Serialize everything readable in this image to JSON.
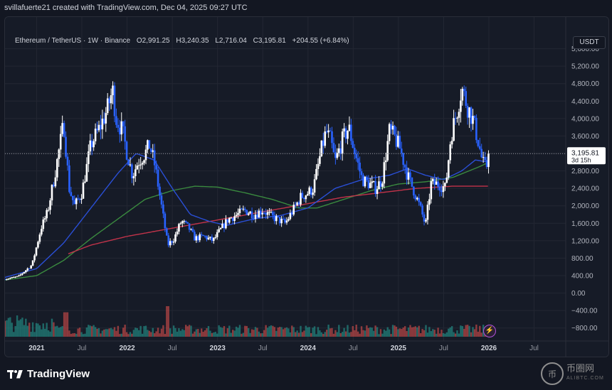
{
  "header": {
    "created_by": "svillafuerte21 created with TradingView.com, Dec 04, 2025 09:27 UTC"
  },
  "legend": {
    "symbol": "Ethereum / TetherUS · 1W · Binance",
    "open": "O2,991.25",
    "high": "H3,240.35",
    "low": "L2,716.04",
    "close": "C3,195.81",
    "change": "+204.55 (+6.84%)"
  },
  "currency": "USDT",
  "price_label": {
    "value": "3,195.81",
    "countdown": "3d 15h"
  },
  "branding": {
    "logo_text": "TradingView",
    "watermark_main": "币圈网",
    "watermark_sub": "ALIBTC.COM",
    "watermark_glyph": "币"
  },
  "colors": {
    "up": "#ffffff",
    "down": "#2962ff",
    "background": "#161b27",
    "grid": "#232733",
    "ma_blue": "#2a4fd6",
    "ma_green": "#3a8a3f",
    "ma_red": "#c2334a",
    "vol_up": "#26a69a",
    "vol_down": "#ef5350"
  },
  "chart_data": {
    "type": "candlestick",
    "ylim": [
      -1000,
      6000
    ],
    "y_ticks": [
      5600,
      5200,
      4800,
      4400,
      4000,
      3600,
      3200,
      2800,
      2400,
      2000,
      1600,
      1200,
      800,
      400,
      0,
      -400,
      -800
    ],
    "y_tick_labels": [
      "5,600.00",
      "5,200.00",
      "4,800.00",
      "4,400.00",
      "4,000.00",
      "3,600.00",
      "3,200.00",
      "2,800.00",
      "2,400.00",
      "2,000.00",
      "1,600.00",
      "1,200.00",
      "800.00",
      "400.00",
      "0.00",
      "−400.00",
      "−800.00"
    ],
    "x_ticks": [
      {
        "label": "2021",
        "t": 0.0
      },
      {
        "label": "Jul",
        "t": 0.5
      },
      {
        "label": "2022",
        "t": 1.0
      },
      {
        "label": "Jul",
        "t": 1.5
      },
      {
        "label": "2023",
        "t": 2.0
      },
      {
        "label": "Jul",
        "t": 2.5
      },
      {
        "label": "2024",
        "t": 3.0
      },
      {
        "label": "Jul",
        "t": 3.5
      },
      {
        "label": "2025",
        "t": 4.0
      },
      {
        "label": "Jul",
        "t": 4.5
      },
      {
        "label": "2026",
        "t": 5.0
      },
      {
        "label": "Jul",
        "t": 5.5
      }
    ],
    "xlim": [
      -0.35,
      5.85
    ],
    "last_price": 3195.81,
    "close_anchors": [
      [
        -0.35,
        320
      ],
      [
        -0.2,
        380
      ],
      [
        -0.05,
        650
      ],
      [
        0.05,
        1500
      ],
      [
        0.12,
        1850
      ],
      [
        0.2,
        2700
      ],
      [
        0.3,
        3900
      ],
      [
        0.36,
        2400
      ],
      [
        0.42,
        2000
      ],
      [
        0.5,
        2300
      ],
      [
        0.6,
        3400
      ],
      [
        0.7,
        3800
      ],
      [
        0.78,
        4200
      ],
      [
        0.84,
        4650
      ],
      [
        0.88,
        4000
      ],
      [
        0.95,
        3700
      ],
      [
        1.0,
        3200
      ],
      [
        1.06,
        2700
      ],
      [
        1.12,
        3000
      ],
      [
        1.2,
        3200
      ],
      [
        1.25,
        3400
      ],
      [
        1.31,
        2900
      ],
      [
        1.38,
        2000
      ],
      [
        1.45,
        1100
      ],
      [
        1.52,
        1250
      ],
      [
        1.6,
        1650
      ],
      [
        1.68,
        1500
      ],
      [
        1.75,
        1250
      ],
      [
        1.85,
        1300
      ],
      [
        1.95,
        1200
      ],
      [
        2.05,
        1500
      ],
      [
        2.12,
        1700
      ],
      [
        2.22,
        1800
      ],
      [
        2.3,
        1900
      ],
      [
        2.4,
        1800
      ],
      [
        2.5,
        1900
      ],
      [
        2.6,
        1750
      ],
      [
        2.7,
        1650
      ],
      [
        2.75,
        1600
      ],
      [
        2.85,
        1950
      ],
      [
        2.92,
        2200
      ],
      [
        3.0,
        2300
      ],
      [
        3.06,
        2400
      ],
      [
        3.15,
        3300
      ],
      [
        3.2,
        3700
      ],
      [
        3.25,
        3500
      ],
      [
        3.3,
        3000
      ],
      [
        3.38,
        3500
      ],
      [
        3.45,
        3800
      ],
      [
        3.52,
        3200
      ],
      [
        3.6,
        2600
      ],
      [
        3.68,
        2500
      ],
      [
        3.75,
        2400
      ],
      [
        3.82,
        2600
      ],
      [
        3.9,
        3700
      ],
      [
        3.95,
        3600
      ],
      [
        4.02,
        3300
      ],
      [
        4.1,
        2700
      ],
      [
        4.18,
        2300
      ],
      [
        4.25,
        1900
      ],
      [
        4.3,
        1550
      ],
      [
        4.36,
        2500
      ],
      [
        4.45,
        2500
      ],
      [
        4.52,
        2400
      ],
      [
        4.58,
        3600
      ],
      [
        4.65,
        4200
      ],
      [
        4.7,
        4700
      ],
      [
        4.76,
        4300
      ],
      [
        4.82,
        4000
      ],
      [
        4.88,
        3500
      ],
      [
        4.93,
        3000
      ],
      [
        4.97,
        2850
      ],
      [
        5.0,
        3195.81
      ]
    ],
    "ma_blue_anchors": [
      [
        -0.35,
        360
      ],
      [
        0.0,
        560
      ],
      [
        0.3,
        1150
      ],
      [
        0.6,
        1950
      ],
      [
        0.9,
        2750
      ],
      [
        1.1,
        3200
      ],
      [
        1.3,
        3050
      ],
      [
        1.5,
        2400
      ],
      [
        1.7,
        1800
      ],
      [
        1.9,
        1650
      ],
      [
        2.1,
        1550
      ],
      [
        2.4,
        1700
      ],
      [
        2.7,
        1780
      ],
      [
        3.0,
        1950
      ],
      [
        3.3,
        2400
      ],
      [
        3.6,
        2600
      ],
      [
        3.9,
        2700
      ],
      [
        4.1,
        2850
      ],
      [
        4.3,
        2700
      ],
      [
        4.5,
        2600
      ],
      [
        4.7,
        2800
      ],
      [
        4.85,
        3050
      ],
      [
        5.0,
        3000
      ]
    ],
    "ma_green_anchors": [
      [
        -0.35,
        300
      ],
      [
        0.0,
        400
      ],
      [
        0.3,
        750
      ],
      [
        0.6,
        1250
      ],
      [
        0.9,
        1700
      ],
      [
        1.2,
        2150
      ],
      [
        1.5,
        2350
      ],
      [
        1.75,
        2450
      ],
      [
        2.0,
        2430
      ],
      [
        2.3,
        2300
      ],
      [
        2.6,
        2150
      ],
      [
        2.9,
        1950
      ],
      [
        3.1,
        1950
      ],
      [
        3.4,
        2150
      ],
      [
        3.7,
        2350
      ],
      [
        4.0,
        2500
      ],
      [
        4.3,
        2550
      ],
      [
        4.6,
        2650
      ],
      [
        4.9,
        2900
      ],
      [
        5.0,
        3000
      ]
    ],
    "ma_red_anchors": [
      [
        0.35,
        900
      ],
      [
        0.6,
        1100
      ],
      [
        1.0,
        1300
      ],
      [
        1.4,
        1450
      ],
      [
        1.8,
        1600
      ],
      [
        2.2,
        1750
      ],
      [
        2.6,
        1900
      ],
      [
        3.0,
        2050
      ],
      [
        3.4,
        2200
      ],
      [
        3.8,
        2300
      ],
      [
        4.2,
        2400
      ],
      [
        4.6,
        2450
      ],
      [
        5.0,
        2450
      ]
    ],
    "volume_base": -1000,
    "volume_max": 600
  }
}
